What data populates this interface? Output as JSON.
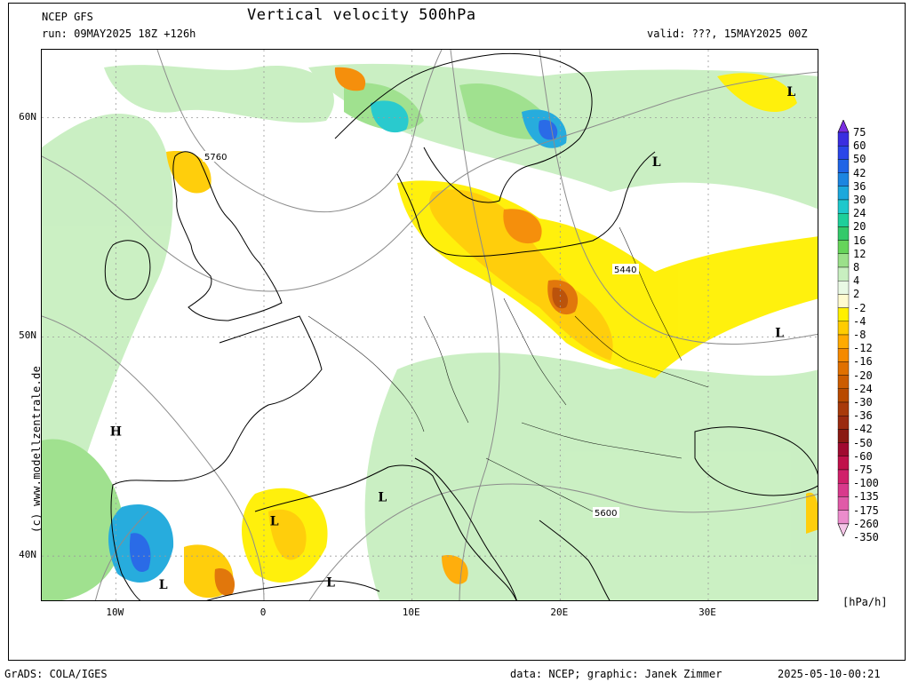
{
  "header": {
    "model": "NCEP GFS",
    "run": "run: 09MAY2025 18Z +126h",
    "title": "Vertical velocity 500hPa",
    "valid": "valid: ???, 15MAY2025 00Z"
  },
  "map": {
    "lat_labels": [
      "60N",
      "50N",
      "40N"
    ],
    "lon_labels": [
      "10W",
      "0",
      "10E",
      "20E",
      "30E"
    ],
    "lat_values": [
      60,
      50,
      40
    ],
    "lon_values": [
      -10,
      0,
      10,
      20,
      30
    ],
    "extent": {
      "lon_min": -15,
      "lon_max": 37.5,
      "lat_min": 37.9,
      "lat_max": 63.1
    },
    "contour_labels": [
      "5760",
      "5440",
      "5600"
    ],
    "pressure_markers": [
      {
        "label": "L",
        "lon": 35.6,
        "lat": 61.0
      },
      {
        "label": "L",
        "lon": 26.5,
        "lat": 57.8
      },
      {
        "label": "L",
        "lon": 34.8,
        "lat": 50.0
      },
      {
        "label": "H",
        "lon": -10.0,
        "lat": 45.5
      },
      {
        "label": "L",
        "lon": 0.7,
        "lat": 41.4
      },
      {
        "label": "L",
        "lon": 8.0,
        "lat": 42.5
      },
      {
        "label": "L",
        "lon": -6.8,
        "lat": 38.5
      },
      {
        "label": "L",
        "lon": 4.5,
        "lat": 38.6
      }
    ],
    "credit_vertical": "(c) www.modellzentrale.de",
    "colors": {
      "sea_land_bg": "#ffffff",
      "graticule": "#9a9a9a",
      "coast": "#000000",
      "isohypse": "#8c8c8c"
    }
  },
  "legend": {
    "units": "[hPa/h]",
    "labels": [
      "75",
      "60",
      "50",
      "42",
      "36",
      "30",
      "24",
      "20",
      "16",
      "12",
      "8",
      "4",
      "2",
      "-2",
      "-4",
      "-8",
      "-12",
      "-16",
      "-20",
      "-24",
      "-30",
      "-36",
      "-42",
      "-50",
      "-60",
      "-75",
      "-100",
      "-135",
      "-175",
      "-260",
      "-350"
    ],
    "colors": [
      "#7a2ee0",
      "#3a2ee0",
      "#2a46e8",
      "#1f64e6",
      "#1c85e0",
      "#1ca8dc",
      "#1ec8cc",
      "#1ecf9a",
      "#33c96a",
      "#66d45a",
      "#9be08a",
      "#c8efc0",
      "#e9f9e4",
      "#fffbd0",
      "#fff000",
      "#ffcc00",
      "#ffaa00",
      "#f58a00",
      "#e07000",
      "#cc5c00",
      "#b84a00",
      "#a83a0a",
      "#9a2a10",
      "#8a1a12",
      "#a00a30",
      "#c0104a",
      "#d0206a",
      "#d83a8c",
      "#e05aa8",
      "#eb8ccc",
      "#f6c6e8"
    ]
  },
  "footer": {
    "left": "GrADS: COLA/IGES",
    "center": "data: NCEP; graphic: Janek Zimmer",
    "right": "2025-05-10-00:21"
  }
}
